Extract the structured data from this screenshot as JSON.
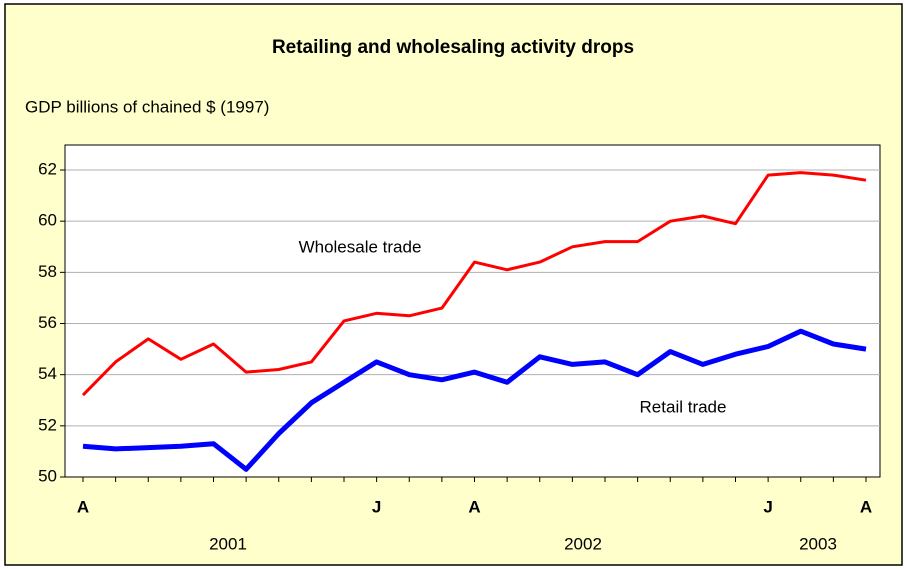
{
  "chart_data": {
    "type": "line",
    "title": "Retailing and wholesaling activity drops",
    "ylabel": "GDP billions of chained $ (1997)",
    "categories": [
      "A",
      null,
      null,
      null,
      null,
      null,
      null,
      null,
      null,
      "J",
      null,
      null,
      "A",
      null,
      null,
      null,
      null,
      null,
      null,
      null,
      null,
      "J",
      null,
      null,
      "A"
    ],
    "x_groups": [
      "2001",
      "2002",
      "2003"
    ],
    "series": [
      {
        "name": "Wholesale trade",
        "color": "#ff0000",
        "values": [
          53.2,
          54.5,
          55.4,
          54.6,
          55.2,
          54.1,
          54.2,
          54.5,
          56.1,
          56.4,
          56.3,
          56.6,
          58.4,
          58.1,
          58.4,
          59.0,
          59.2,
          59.2,
          60.0,
          60.2,
          59.9,
          61.8,
          61.9,
          61.8,
          61.6
        ]
      },
      {
        "name": "Retail trade",
        "color": "#0000ff",
        "values": [
          51.2,
          51.1,
          51.15,
          51.2,
          51.3,
          50.3,
          51.7,
          52.9,
          53.7,
          54.5,
          54.0,
          53.8,
          54.1,
          53.7,
          54.7,
          54.4,
          54.5,
          54.0,
          54.9,
          54.4,
          54.8,
          55.1,
          55.7,
          55.2,
          55.0
        ]
      }
    ],
    "ylim": [
      50,
      62
    ],
    "yticks": [
      50,
      52,
      54,
      56,
      58,
      60,
      62
    ],
    "grid": true
  }
}
